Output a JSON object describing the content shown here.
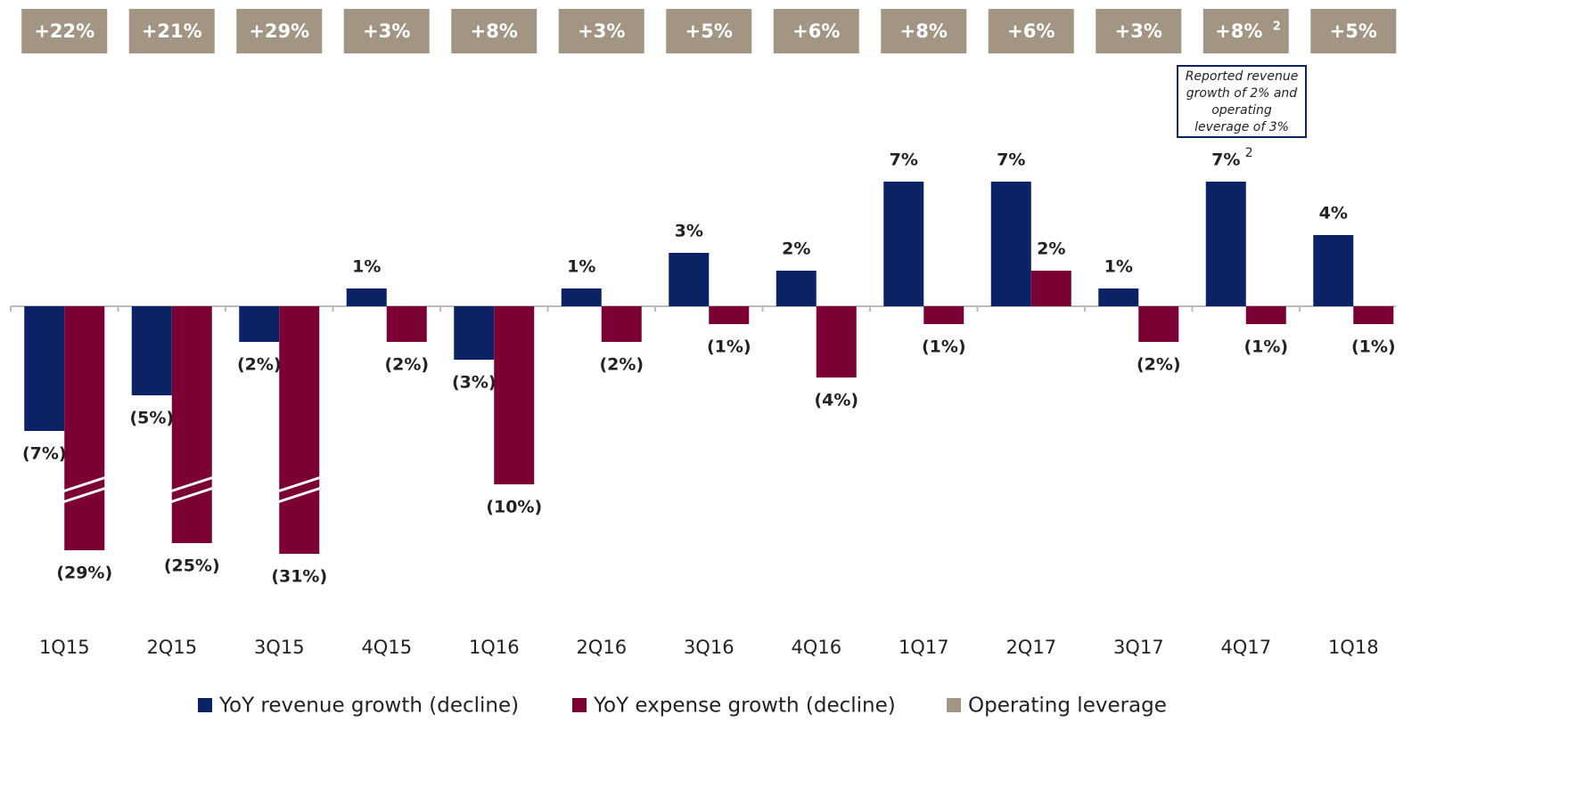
{
  "chart_data": {
    "type": "bar",
    "categories": [
      "1Q15",
      "2Q15",
      "3Q15",
      "4Q15",
      "1Q16",
      "2Q16",
      "3Q16",
      "4Q16",
      "1Q17",
      "2Q17",
      "3Q17",
      "4Q17",
      "1Q18"
    ],
    "series": [
      {
        "name": "YoY revenue growth (decline)",
        "color": "#0b2265",
        "values": [
          -7,
          -5,
          -2,
          1,
          -3,
          1,
          3,
          2,
          7,
          7,
          1,
          7,
          4
        ],
        "value_labels": [
          "(7%)",
          "(5%)",
          "(2%)",
          "1%",
          "(3%)",
          "1%",
          "3%",
          "2%",
          "7%",
          "7%",
          "1%",
          "7%",
          "4%"
        ],
        "value_notes": [
          null,
          null,
          null,
          null,
          null,
          null,
          null,
          null,
          null,
          null,
          null,
          "2",
          null
        ]
      },
      {
        "name": "YoY expense growth (decline)",
        "color": "#7b0033",
        "values": [
          -29,
          -25,
          -31,
          -2,
          -10,
          -2,
          -1,
          -4,
          -1,
          2,
          -2,
          -1,
          -1
        ],
        "value_labels": [
          "(29%)",
          "(25%)",
          "(31%)",
          "(2%)",
          "(10%)",
          "(2%)",
          "(1%)",
          "(4%)",
          "(1%)",
          "2%",
          "(2%)",
          "(1%)",
          "(1%)"
        ]
      },
      {
        "name": "Operating leverage",
        "color": "#a39583",
        "values": [
          22,
          21,
          29,
          3,
          8,
          3,
          5,
          6,
          8,
          6,
          3,
          8,
          5
        ],
        "value_labels": [
          "+22%",
          "+21%",
          "+29%",
          "+3%",
          "+8%",
          "+3%",
          "+5%",
          "+6%",
          "+8%",
          "+6%",
          "+3%",
          "+8%",
          "+5%"
        ],
        "value_notes": [
          null,
          null,
          null,
          null,
          null,
          null,
          null,
          null,
          null,
          null,
          null,
          "2",
          null
        ]
      }
    ],
    "ylim": [
      -12,
      9
    ],
    "annotation": "Reported revenue growth of 2% and operating leverage of 3%"
  }
}
